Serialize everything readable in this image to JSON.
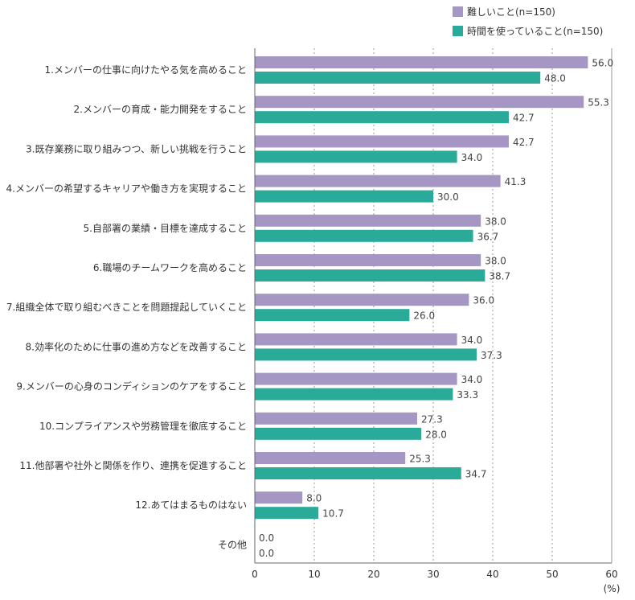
{
  "chart_data": {
    "type": "bar",
    "orientation": "horizontal",
    "categories": [
      "1.メンバーの仕事に向けたやる気を高めること",
      "2.メンバーの育成・能力開発をすること",
      "3.既存業務に取り組みつつ、新しい挑戦を行うこと",
      "4.メンバーの希望するキャリアや働き方を実現すること",
      "5.自部署の業績・目標を達成すること",
      "6.職場のチームワークを高めること",
      "7.組織全体で取り組むべきことを問題提起していくこと",
      "8.効率化のために仕事の進め方などを改善すること",
      "9.メンバーの心身のコンディションのケアをすること",
      "10.コンプライアンスや労務管理を徹底すること",
      "11.他部署や社外と関係を作り、連携を促進すること",
      "12.あてはまるものはない",
      "その他"
    ],
    "series": [
      {
        "name": "難しいこと(n=150)",
        "color": "#a596c4",
        "values": [
          56.0,
          55.3,
          42.7,
          41.3,
          38.0,
          38.0,
          36.0,
          34.0,
          34.0,
          27.3,
          25.3,
          8.0,
          0.0
        ]
      },
      {
        "name": "時間を使っていること(n=150)",
        "color": "#2aaa98",
        "values": [
          48.0,
          42.7,
          34.0,
          30.0,
          36.7,
          38.7,
          26.0,
          37.3,
          33.3,
          28.0,
          34.7,
          10.7,
          0.0
        ]
      }
    ],
    "xlim": [
      0,
      60
    ],
    "xticks": [
      0,
      10,
      20,
      30,
      40,
      50,
      60
    ],
    "xunit": "(%)",
    "grid": "vertical-dotted",
    "legend_position": "top-right"
  }
}
